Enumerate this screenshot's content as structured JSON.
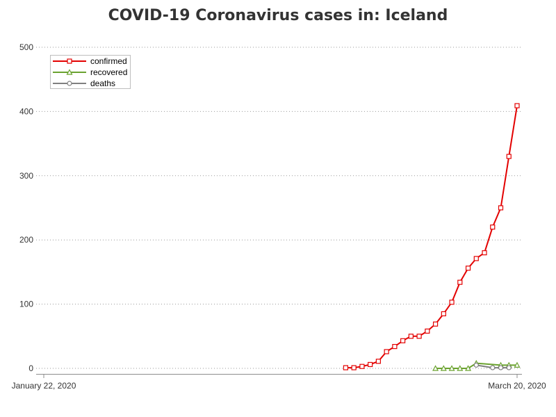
{
  "chart_data": {
    "type": "line",
    "title": "COVID-19 Coronavirus cases in: Iceland",
    "xlabel": "",
    "ylabel": "",
    "x_axis": {
      "start": "2020-01-22",
      "end": "2020-03-20",
      "tick_labels": [
        "January 22, 2020",
        "March 20, 2020"
      ]
    },
    "ylim": [
      0,
      500
    ],
    "y_ticks": [
      0,
      100,
      200,
      300,
      400,
      500
    ],
    "grid": "horizontal dotted",
    "legend_position": "top-left",
    "series": [
      {
        "name": "confirmed",
        "color": "#e30000",
        "marker": "square",
        "points": [
          {
            "x": "2020-02-28",
            "y": 1
          },
          {
            "x": "2020-02-29",
            "y": 1
          },
          {
            "x": "2020-03-01",
            "y": 3
          },
          {
            "x": "2020-03-02",
            "y": 6
          },
          {
            "x": "2020-03-03",
            "y": 11
          },
          {
            "x": "2020-03-04",
            "y": 26
          },
          {
            "x": "2020-03-05",
            "y": 34
          },
          {
            "x": "2020-03-06",
            "y": 43
          },
          {
            "x": "2020-03-07",
            "y": 50
          },
          {
            "x": "2020-03-08",
            "y": 50
          },
          {
            "x": "2020-03-09",
            "y": 58
          },
          {
            "x": "2020-03-10",
            "y": 69
          },
          {
            "x": "2020-03-11",
            "y": 85
          },
          {
            "x": "2020-03-12",
            "y": 103
          },
          {
            "x": "2020-03-13",
            "y": 134
          },
          {
            "x": "2020-03-14",
            "y": 156
          },
          {
            "x": "2020-03-15",
            "y": 171
          },
          {
            "x": "2020-03-16",
            "y": 180
          },
          {
            "x": "2020-03-17",
            "y": 220
          },
          {
            "x": "2020-03-18",
            "y": 250
          },
          {
            "x": "2020-03-19",
            "y": 330
          },
          {
            "x": "2020-03-20",
            "y": 409
          }
        ]
      },
      {
        "name": "recovered",
        "color": "#6aa22f",
        "marker": "triangle",
        "points": [
          {
            "x": "2020-03-10",
            "y": 0
          },
          {
            "x": "2020-03-11",
            "y": 0
          },
          {
            "x": "2020-03-12",
            "y": 0
          },
          {
            "x": "2020-03-13",
            "y": 0
          },
          {
            "x": "2020-03-14",
            "y": 0
          },
          {
            "x": "2020-03-15",
            "y": 8
          },
          {
            "x": "2020-03-18",
            "y": 5
          },
          {
            "x": "2020-03-19",
            "y": 5
          },
          {
            "x": "2020-03-20",
            "y": 5
          }
        ]
      },
      {
        "name": "deaths",
        "color": "#7f7f7f",
        "marker": "circle",
        "points": [
          {
            "x": "2020-03-15",
            "y": 5
          },
          {
            "x": "2020-03-17",
            "y": 1
          },
          {
            "x": "2020-03-18",
            "y": 1
          },
          {
            "x": "2020-03-19",
            "y": 1
          }
        ]
      }
    ]
  }
}
